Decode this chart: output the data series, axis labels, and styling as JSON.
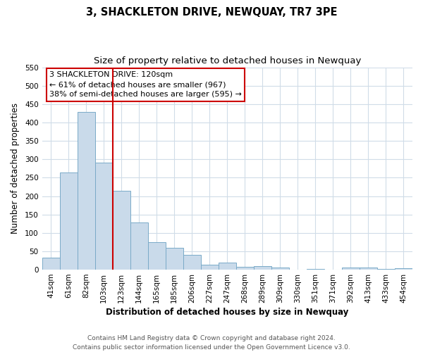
{
  "title": "3, SHACKLETON DRIVE, NEWQUAY, TR7 3PE",
  "subtitle": "Size of property relative to detached houses in Newquay",
  "xlabel": "Distribution of detached houses by size in Newquay",
  "ylabel": "Number of detached properties",
  "bar_labels": [
    "41sqm",
    "61sqm",
    "82sqm",
    "103sqm",
    "123sqm",
    "144sqm",
    "165sqm",
    "185sqm",
    "206sqm",
    "227sqm",
    "247sqm",
    "268sqm",
    "289sqm",
    "309sqm",
    "330sqm",
    "351sqm",
    "371sqm",
    "392sqm",
    "413sqm",
    "433sqm",
    "454sqm"
  ],
  "bar_values": [
    32,
    265,
    428,
    291,
    215,
    128,
    75,
    59,
    40,
    14,
    20,
    8,
    10,
    5,
    0,
    2,
    1,
    6,
    6,
    3,
    4
  ],
  "bar_color": "#c9daea",
  "bar_edge_color": "#7aaac8",
  "ylim": [
    0,
    550
  ],
  "yticks": [
    0,
    50,
    100,
    150,
    200,
    250,
    300,
    350,
    400,
    450,
    500,
    550
  ],
  "vline_pos": 4.5,
  "vline_color": "#cc0000",
  "annotation_title": "3 SHACKLETON DRIVE: 120sqm",
  "annotation_line1": "← 61% of detached houses are smaller (967)",
  "annotation_line2": "38% of semi-detached houses are larger (595) →",
  "annotation_box_color": "#cc0000",
  "footer_line1": "Contains HM Land Registry data © Crown copyright and database right 2024.",
  "footer_line2": "Contains public sector information licensed under the Open Government Licence v3.0.",
  "bg_color": "#ffffff",
  "plot_bg_color": "#ffffff",
  "grid_color": "#d0dce8",
  "title_fontsize": 10.5,
  "subtitle_fontsize": 9.5,
  "axis_label_fontsize": 8.5,
  "tick_fontsize": 7.5,
  "footer_fontsize": 6.5,
  "annotation_fontsize": 8
}
